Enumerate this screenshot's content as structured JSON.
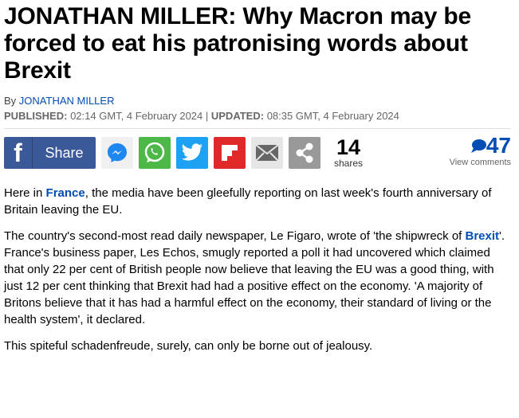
{
  "headline": "JONATHAN MILLER: Why Macron may be forced to eat his patronising words about Brexit",
  "byline": {
    "prefix": "By ",
    "author": "JONATHAN MILLER"
  },
  "dates": {
    "published_label": "PUBLISHED:",
    "published": " 02:14 GMT, 4 February 2024 | ",
    "updated_label": "UPDATED:",
    "updated": " 08:35 GMT, 4 February 2024"
  },
  "share": {
    "facebook_label": "Share",
    "count": "14",
    "count_label": "shares",
    "comments": "47",
    "comments_label": "View comments",
    "colors": {
      "facebook": "#3b5998",
      "messenger": "#f0f0f0",
      "whatsapp": "#4cb848",
      "twitter": "#1da1f2",
      "flipboard": "#e12828",
      "email": "#e6e6e6",
      "more": "#999999"
    }
  },
  "body": [
    {
      "a": "Here in ",
      "link": "France",
      "b": ", the media have been gleefully reporting on last week's fourth anniversary of Britain leaving the EU."
    },
    {
      "a": "The country's second-most read daily newspaper, Le Figaro, wrote of 'the shipwreck of ",
      "link": "Brexit",
      "b": "'. France's business paper, Les Echos, smugly reported a poll it had uncovered which claimed that only 22 per cent of British people now believe that leaving the EU was a good thing, with just 12 per cent thinking that Brexit had had a positive effect on the economy. 'A majority of Britons believe that it has had a harmful effect on the economy, their standard of living or the health system', it declared."
    },
    {
      "a": "This spiteful schadenfreude, surely, can only be borne out of jealousy."
    }
  ]
}
